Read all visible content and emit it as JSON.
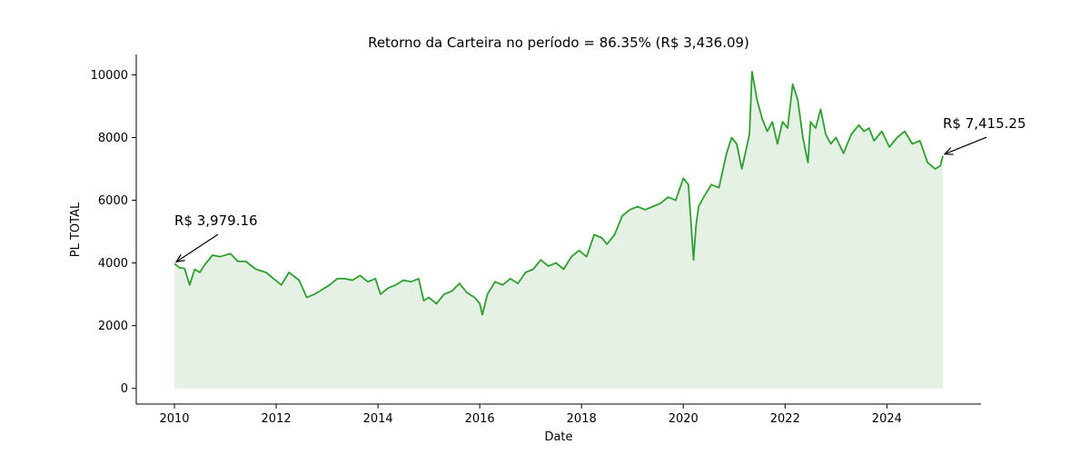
{
  "chart_data": {
    "type": "area",
    "title": "Retorno da Carteira no período = 86.35% (R$ 3,436.09)",
    "xlabel": "Date",
    "ylabel": "PL TOTAL",
    "xlim": [
      2009.25,
      2025.85
    ],
    "ylim": [
      -500,
      10650
    ],
    "x_ticks": [
      2010,
      2012,
      2014,
      2016,
      2018,
      2020,
      2022,
      2024
    ],
    "y_ticks": [
      0,
      2000,
      4000,
      6000,
      8000,
      10000
    ],
    "grid": false,
    "line_color": "#2ca02c",
    "fill_color": "#e5f1e5",
    "series": [
      {
        "x": [
          2010.0,
          2010.1,
          2010.2,
          2010.3,
          2010.4,
          2010.5,
          2010.6,
          2010.75,
          2010.9,
          2011.1,
          2011.25,
          2011.4,
          2011.6,
          2011.8,
          2011.95,
          2012.1,
          2012.25,
          2012.45,
          2012.6,
          2012.75,
          2012.9,
          2013.05,
          2013.2,
          2013.35,
          2013.5,
          2013.65,
          2013.8,
          2013.95,
          2014.05,
          2014.2,
          2014.35,
          2014.5,
          2014.65,
          2014.8,
          2014.9,
          2015.0,
          2015.15,
          2015.3,
          2015.45,
          2015.6,
          2015.75,
          2015.9,
          2016.0,
          2016.05,
          2016.15,
          2016.3,
          2016.45,
          2016.6,
          2016.75,
          2016.9,
          2017.05,
          2017.2,
          2017.35,
          2017.5,
          2017.65,
          2017.8,
          2017.95,
          2018.1,
          2018.25,
          2018.4,
          2018.5,
          2018.65,
          2018.8,
          2018.95,
          2019.1,
          2019.25,
          2019.4,
          2019.55,
          2019.7,
          2019.85,
          2020.0,
          2020.1,
          2020.15,
          2020.2,
          2020.25,
          2020.3,
          2020.4,
          2020.55,
          2020.7,
          2020.85,
          2020.95,
          2021.05,
          2021.15,
          2021.3,
          2021.35,
          2021.45,
          2021.55,
          2021.65,
          2021.75,
          2021.85,
          2021.95,
          2022.05,
          2022.15,
          2022.25,
          2022.35,
          2022.45,
          2022.5,
          2022.6,
          2022.7,
          2022.8,
          2022.9,
          2023.0,
          2023.15,
          2023.3,
          2023.45,
          2023.55,
          2023.65,
          2023.75,
          2023.9,
          2024.05,
          2024.2,
          2024.35,
          2024.5,
          2024.65,
          2024.8,
          2024.95,
          2025.05,
          2025.1
        ],
        "values": [
          3979,
          3850,
          3820,
          3300,
          3800,
          3700,
          3950,
          4250,
          4200,
          4300,
          4050,
          4050,
          3800,
          3700,
          3500,
          3300,
          3700,
          3450,
          2900,
          3000,
          3150,
          3300,
          3500,
          3500,
          3450,
          3600,
          3400,
          3500,
          3000,
          3200,
          3300,
          3450,
          3400,
          3500,
          2800,
          2900,
          2700,
          3000,
          3100,
          3350,
          3050,
          2900,
          2700,
          2350,
          3000,
          3400,
          3300,
          3500,
          3350,
          3700,
          3800,
          4100,
          3900,
          4000,
          3800,
          4200,
          4400,
          4200,
          4900,
          4800,
          4600,
          4900,
          5500,
          5700,
          5800,
          5700,
          5800,
          5900,
          6100,
          6000,
          6700,
          6500,
          5300,
          4100,
          5200,
          5800,
          6100,
          6500,
          6400,
          7500,
          8000,
          7800,
          7000,
          8100,
          10100,
          9200,
          8600,
          8200,
          8500,
          7800,
          8500,
          8300,
          9700,
          9200,
          8000,
          7200,
          8500,
          8300,
          8900,
          8100,
          7800,
          8000,
          7500,
          8100,
          8400,
          8200,
          8300,
          7900,
          8200,
          7700,
          8000,
          8200,
          7800,
          7900,
          7200,
          7000,
          7100,
          7415
        ]
      }
    ],
    "annotations": [
      {
        "text": "R$ 3,979.16",
        "x": 2010.0,
        "y": 3979,
        "text_x": 2010.0,
        "text_y": 5200
      },
      {
        "text": "R$ 7,415.25",
        "x": 2025.1,
        "y": 7415,
        "text_x": 2025.1,
        "text_y": 8300
      }
    ]
  }
}
